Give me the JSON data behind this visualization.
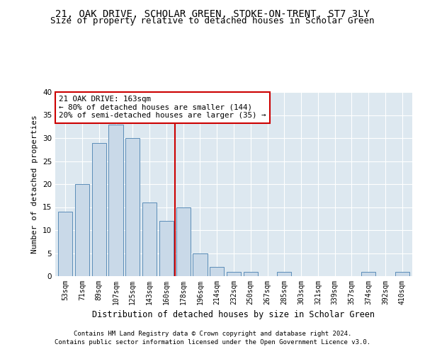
{
  "title": "21, OAK DRIVE, SCHOLAR GREEN, STOKE-ON-TRENT, ST7 3LY",
  "subtitle": "Size of property relative to detached houses in Scholar Green",
  "xlabel": "Distribution of detached houses by size in Scholar Green",
  "ylabel": "Number of detached properties",
  "bar_labels": [
    "53sqm",
    "71sqm",
    "89sqm",
    "107sqm",
    "125sqm",
    "143sqm",
    "160sqm",
    "178sqm",
    "196sqm",
    "214sqm",
    "232sqm",
    "250sqm",
    "267sqm",
    "285sqm",
    "303sqm",
    "321sqm",
    "339sqm",
    "357sqm",
    "374sqm",
    "392sqm",
    "410sqm"
  ],
  "bar_values": [
    14,
    20,
    29,
    33,
    30,
    16,
    12,
    15,
    5,
    2,
    1,
    1,
    0,
    1,
    0,
    0,
    0,
    0,
    1,
    0,
    1
  ],
  "bar_color": "#c9d9e8",
  "bar_edgecolor": "#5b8db8",
  "vline_x": 6.5,
  "vline_color": "#cc0000",
  "annotation_text": "21 OAK DRIVE: 163sqm\n← 80% of detached houses are smaller (144)\n20% of semi-detached houses are larger (35) →",
  "annotation_box_color": "#ffffff",
  "annotation_box_edgecolor": "#cc0000",
  "ylim": [
    0,
    40
  ],
  "yticks": [
    0,
    5,
    10,
    15,
    20,
    25,
    30,
    35,
    40
  ],
  "footer_line1": "Contains HM Land Registry data © Crown copyright and database right 2024.",
  "footer_line2": "Contains public sector information licensed under the Open Government Licence v3.0.",
  "bg_color": "#dde8f0",
  "title_fontsize": 10,
  "subtitle_fontsize": 9,
  "tick_fontsize": 7,
  "ylabel_fontsize": 8,
  "xlabel_fontsize": 8.5,
  "footer_fontsize": 6.5,
  "annotation_fontsize": 7.8
}
